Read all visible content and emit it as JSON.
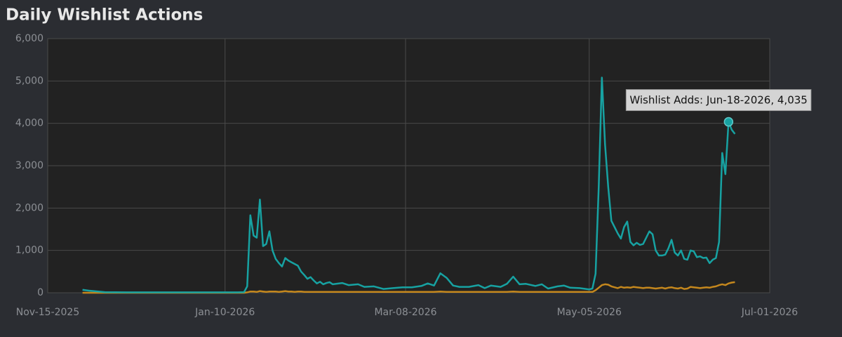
{
  "chart_data": {
    "type": "line",
    "title": "Daily Wishlist Actions",
    "x": [
      "2025-11-26",
      "2025-11-28",
      "2025-12-01",
      "2025-12-03",
      "2025-12-10",
      "2025-12-20",
      "2025-12-30",
      "2026-01-09",
      "2026-01-14",
      "2026-01-16",
      "2026-01-17",
      "2026-01-18",
      "2026-01-19",
      "2026-01-20",
      "2026-01-21",
      "2026-01-22",
      "2026-01-23",
      "2026-01-24",
      "2026-01-25",
      "2026-01-26",
      "2026-01-27",
      "2026-01-28",
      "2026-01-29",
      "2026-01-30",
      "2026-01-31",
      "2026-02-01",
      "2026-02-02",
      "2026-02-03",
      "2026-02-04",
      "2026-02-05",
      "2026-02-06",
      "2026-02-07",
      "2026-02-08",
      "2026-02-09",
      "2026-02-10",
      "2026-02-11",
      "2026-02-12",
      "2026-02-13",
      "2026-02-16",
      "2026-02-18",
      "2026-02-21",
      "2026-02-23",
      "2026-02-26",
      "2026-03-01",
      "2026-03-04",
      "2026-03-07",
      "2026-03-10",
      "2026-03-13",
      "2026-03-15",
      "2026-03-17",
      "2026-03-19",
      "2026-03-21",
      "2026-03-23",
      "2026-03-25",
      "2026-03-28",
      "2026-03-31",
      "2026-04-02",
      "2026-04-04",
      "2026-04-07",
      "2026-04-09",
      "2026-04-11",
      "2026-04-13",
      "2026-04-15",
      "2026-04-18",
      "2026-04-20",
      "2026-04-22",
      "2026-04-25",
      "2026-04-27",
      "2026-04-29",
      "2026-05-02",
      "2026-05-05",
      "2026-05-06",
      "2026-05-07",
      "2026-05-08",
      "2026-05-09",
      "2026-05-10",
      "2026-05-11",
      "2026-05-12",
      "2026-05-13",
      "2026-05-14",
      "2026-05-15",
      "2026-05-16",
      "2026-05-17",
      "2026-05-18",
      "2026-05-19",
      "2026-05-20",
      "2026-05-21",
      "2026-05-22",
      "2026-05-23",
      "2026-05-24",
      "2026-05-25",
      "2026-05-26",
      "2026-05-27",
      "2026-05-28",
      "2026-05-29",
      "2026-05-30",
      "2026-05-31",
      "2026-06-01",
      "2026-06-02",
      "2026-06-03",
      "2026-06-04",
      "2026-06-05",
      "2026-06-06",
      "2026-06-07",
      "2026-06-08",
      "2026-06-09",
      "2026-06-10",
      "2026-06-11",
      "2026-06-12",
      "2026-06-13",
      "2026-06-14",
      "2026-06-15",
      "2026-06-16",
      "2026-06-17",
      "2026-06-18",
      "2026-06-19",
      "2026-06-20"
    ],
    "series": [
      {
        "name": "Wishlist Adds",
        "color": "#17a2a2",
        "values": [
          70,
          50,
          30,
          15,
          10,
          10,
          10,
          10,
          10,
          15,
          150,
          1830,
          1350,
          1300,
          2200,
          1100,
          1150,
          1450,
          1000,
          800,
          700,
          620,
          820,
          760,
          720,
          680,
          640,
          500,
          420,
          330,
          370,
          290,
          220,
          260,
          200,
          230,
          250,
          200,
          230,
          180,
          200,
          140,
          150,
          90,
          110,
          130,
          130,
          160,
          220,
          170,
          460,
          350,
          170,
          140,
          140,
          180,
          110,
          170,
          140,
          210,
          380,
          200,
          210,
          160,
          200,
          100,
          150,
          170,
          120,
          110,
          80,
          100,
          450,
          2500,
          5080,
          3500,
          2500,
          1700,
          1550,
          1400,
          1280,
          1550,
          1680,
          1200,
          1120,
          1180,
          1130,
          1150,
          1300,
          1450,
          1380,
          1000,
          880,
          880,
          900,
          1050,
          1250,
          950,
          880,
          1000,
          800,
          780,
          1000,
          980,
          840,
          860,
          820,
          830,
          700,
          780,
          820,
          1200,
          3300,
          2800,
          4035,
          3850,
          3750
        ]
      },
      {
        "color": "#c4871d",
        "values": [
          0,
          0,
          0,
          0,
          0,
          0,
          0,
          0,
          0,
          0,
          10,
          30,
          30,
          20,
          40,
          30,
          20,
          30,
          30,
          30,
          20,
          30,
          40,
          30,
          30,
          20,
          30,
          30,
          20,
          20,
          20,
          20,
          20,
          20,
          20,
          20,
          20,
          20,
          20,
          20,
          20,
          20,
          20,
          20,
          20,
          20,
          20,
          20,
          20,
          20,
          30,
          20,
          20,
          20,
          20,
          20,
          20,
          20,
          20,
          20,
          30,
          20,
          20,
          20,
          20,
          20,
          20,
          20,
          20,
          20,
          20,
          20,
          60,
          120,
          180,
          200,
          190,
          150,
          130,
          110,
          140,
          120,
          130,
          120,
          140,
          130,
          120,
          110,
          120,
          120,
          110,
          100,
          110,
          120,
          100,
          120,
          130,
          110,
          100,
          120,
          90,
          100,
          140,
          130,
          120,
          110,
          120,
          130,
          120,
          140,
          150,
          180,
          200,
          180,
          220,
          240,
          250
        ]
      }
    ],
    "xlim": [
      "2025-11-15",
      "2026-07-01"
    ],
    "xticks": [
      {
        "value": "2025-11-15",
        "label": "Nov-15-2025"
      },
      {
        "value": "2026-01-10",
        "label": "Jan-10-2026"
      },
      {
        "value": "2026-03-08",
        "label": "Mar-08-2026"
      },
      {
        "value": "2026-05-05",
        "label": "May-05-2026"
      },
      {
        "value": "2026-07-01",
        "label": "Jul-01-2026"
      }
    ],
    "ylim": [
      0,
      6000
    ],
    "yticks": [
      0,
      {
        "value": 1000,
        "label": "1,000"
      },
      {
        "value": 2000,
        "label": "2,000"
      },
      {
        "value": 3000,
        "label": "3,000"
      },
      {
        "value": 4000,
        "label": "4,000"
      },
      {
        "value": 5000,
        "label": "5,000"
      },
      {
        "value": 6000,
        "label": "6,000"
      }
    ],
    "grid": true,
    "tooltip": {
      "series": "Wishlist Adds",
      "date": "Jun-18-2026",
      "value": "4,035"
    }
  }
}
